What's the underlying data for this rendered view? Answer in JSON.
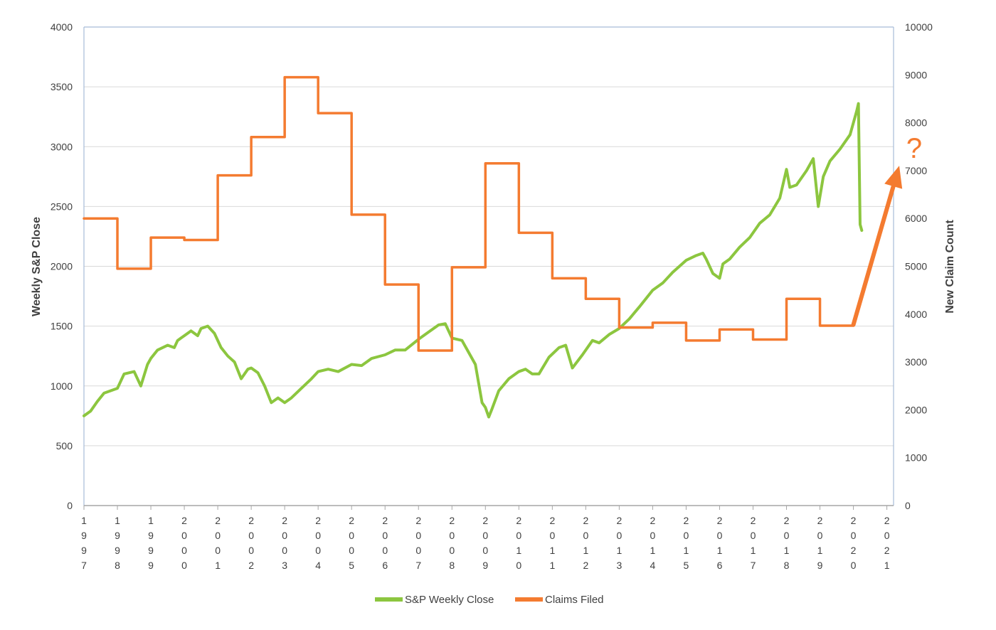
{
  "chart_data": {
    "type": "line",
    "title": "",
    "left_axis": {
      "label": "Weekly  S&P  Close",
      "ylim": [
        0,
        4000
      ],
      "ticks": [
        "0",
        "500",
        "1000",
        "1500",
        "2000",
        "2500",
        "3000",
        "3500",
        "4000"
      ]
    },
    "right_axis": {
      "label": "New Claim Count",
      "ylim": [
        0,
        10000
      ],
      "ticks": [
        "0",
        "1000",
        "2000",
        "3000",
        "4000",
        "5000",
        "6000",
        "7000",
        "8000",
        "9000",
        "10000"
      ]
    },
    "x_axis": {
      "xlim": [
        1997,
        2021.2
      ],
      "tick_values": [
        1997,
        1998,
        1999,
        2000,
        2001,
        2002,
        2003,
        2004,
        2005,
        2006,
        2007,
        2008,
        2009,
        2010,
        2011,
        2012,
        2013,
        2014,
        2015,
        2016,
        2017,
        2018,
        2019,
        2020,
        2021
      ],
      "tick_labels": [
        "1997",
        "1998",
        "1999",
        "2000",
        "2001",
        "2002",
        "2003",
        "2004",
        "2005",
        "2006",
        "2007",
        "2008",
        "2009",
        "2010",
        "2011",
        "2012",
        "2013",
        "2014",
        "2015",
        "2016",
        "2017",
        "2018",
        "2019",
        "2020",
        "2021"
      ]
    },
    "grid": true,
    "legend_position": "bottom",
    "series": [
      {
        "name": "S&P Weekly Close",
        "axis": "left",
        "color": "#8cc63f",
        "x": [
          1997,
          1997.2,
          1997.4,
          1997.6,
          1997.8,
          1998.0,
          1998.2,
          1998.5,
          1998.7,
          1998.9,
          1999.0,
          1999.2,
          1999.5,
          1999.7,
          1999.8,
          2000.0,
          2000.2,
          2000.4,
          2000.5,
          2000.7,
          2000.9,
          2001.1,
          2001.3,
          2001.5,
          2001.7,
          2001.9,
          2002.0,
          2002.2,
          2002.4,
          2002.6,
          2002.8,
          2003.0,
          2003.2,
          2003.5,
          2003.8,
          2004.0,
          2004.3,
          2004.6,
          2005.0,
          2005.3,
          2005.6,
          2006.0,
          2006.3,
          2006.6,
          2007.0,
          2007.3,
          2007.6,
          2007.8,
          2008.0,
          2008.3,
          2008.5,
          2008.7,
          2008.9,
          2009.0,
          2009.1,
          2009.2,
          2009.4,
          2009.7,
          2010.0,
          2010.2,
          2010.4,
          2010.6,
          2010.9,
          2011.2,
          2011.4,
          2011.6,
          2011.9,
          2012.2,
          2012.4,
          2012.7,
          2013.0,
          2013.3,
          2013.6,
          2014.0,
          2014.3,
          2014.6,
          2014.8,
          2015.0,
          2015.3,
          2015.5,
          2015.6,
          2015.8,
          2016.0,
          2016.1,
          2016.3,
          2016.6,
          2016.9,
          2017.2,
          2017.5,
          2017.8,
          2018.0,
          2018.1,
          2018.3,
          2018.6,
          2018.8,
          2018.95,
          2019.1,
          2019.3,
          2019.6,
          2019.9,
          2020.1,
          2020.15,
          2020.2,
          2020.25
        ],
        "values": [
          750,
          790,
          870,
          940,
          960,
          980,
          1100,
          1120,
          1000,
          1180,
          1230,
          1300,
          1340,
          1320,
          1380,
          1420,
          1460,
          1420,
          1480,
          1500,
          1440,
          1320,
          1250,
          1200,
          1060,
          1140,
          1150,
          1110,
          1000,
          860,
          900,
          860,
          900,
          980,
          1060,
          1120,
          1140,
          1120,
          1180,
          1170,
          1230,
          1260,
          1300,
          1300,
          1390,
          1450,
          1510,
          1520,
          1400,
          1380,
          1280,
          1180,
          860,
          820,
          740,
          810,
          960,
          1060,
          1120,
          1140,
          1100,
          1100,
          1240,
          1320,
          1340,
          1150,
          1260,
          1380,
          1360,
          1430,
          1480,
          1560,
          1660,
          1800,
          1860,
          1950,
          2000,
          2050,
          2090,
          2110,
          2060,
          1940,
          1900,
          2020,
          2060,
          2160,
          2240,
          2360,
          2430,
          2570,
          2810,
          2660,
          2680,
          2800,
          2900,
          2500,
          2750,
          2880,
          2980,
          3100,
          3300,
          3360,
          2350,
          2300
        ]
      },
      {
        "name": "Claims Filed",
        "axis": "right",
        "color": "#f47b30",
        "step": true,
        "x": [
          1997,
          1998,
          1999,
          2000,
          2001,
          2002,
          2003,
          2004,
          2005,
          2006,
          2007,
          2008,
          2009,
          2010,
          2011,
          2012,
          2013,
          2014,
          2015,
          2016,
          2017,
          2018,
          2019,
          2020
        ],
        "values": [
          6000,
          4950,
          5600,
          5550,
          6900,
          7700,
          8950,
          8200,
          6080,
          4620,
          3240,
          4980,
          7150,
          5700,
          4750,
          4320,
          3720,
          3820,
          3450,
          3680,
          3470,
          4320,
          3760,
          3760
        ]
      }
    ],
    "annotations": [
      {
        "type": "arrow",
        "color": "#f47b30",
        "from": {
          "x": 2020.0,
          "y_right": 3780
        },
        "to": {
          "x": 2021.4,
          "y_right": 7100
        }
      },
      {
        "type": "text",
        "text": "?",
        "color": "#f47b30"
      }
    ]
  }
}
